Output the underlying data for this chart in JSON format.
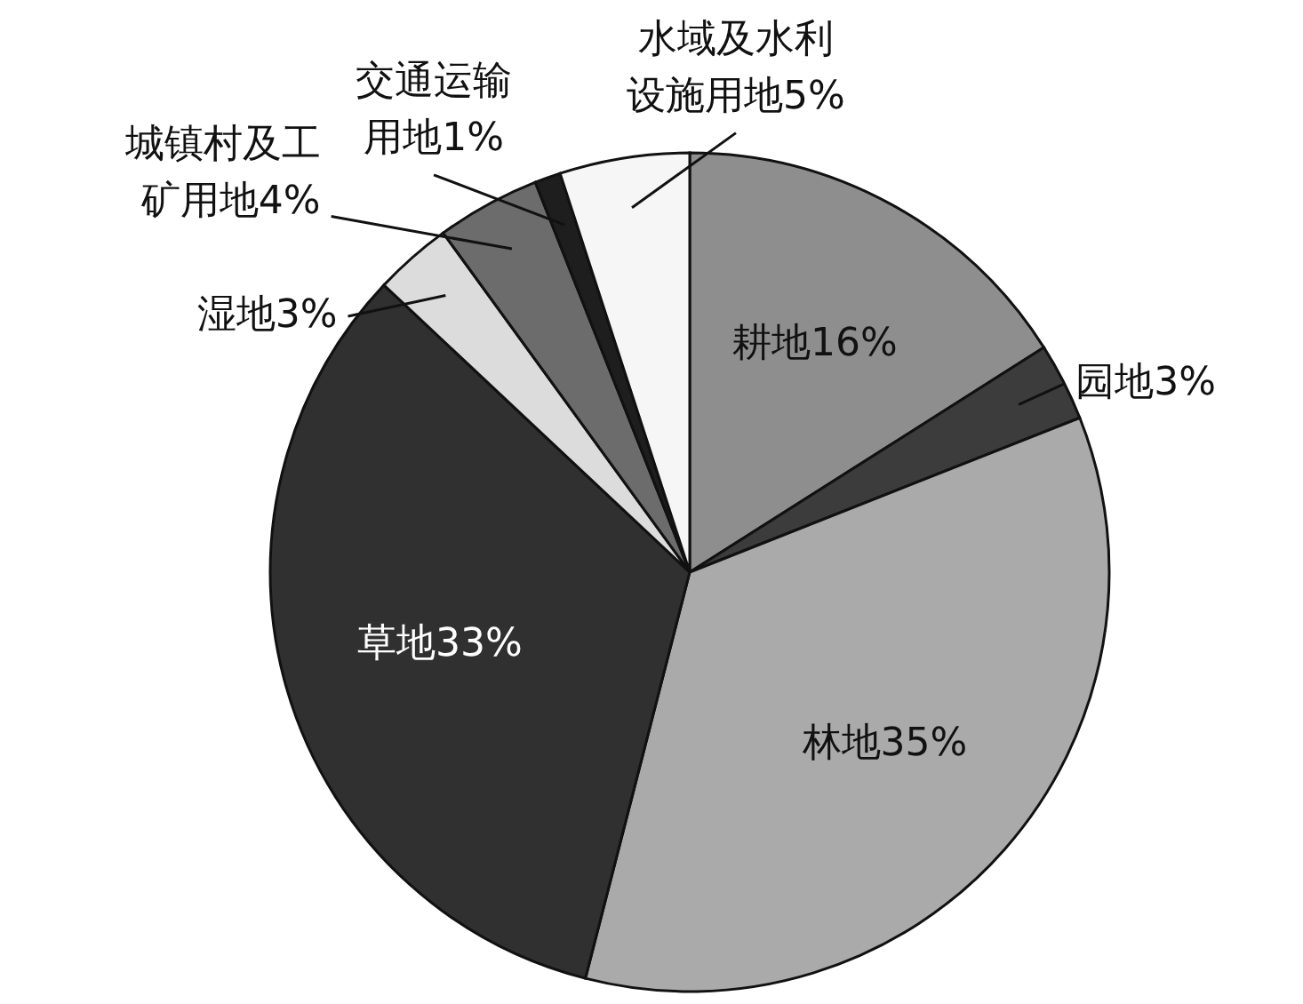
{
  "chart_data": {
    "type": "pie",
    "categories": [
      "耕地",
      "园地",
      "林地",
      "草地",
      "湿地",
      "城镇村及工矿用地",
      "交通运输用地",
      "水域及水利设施用地"
    ],
    "values": [
      16,
      3,
      35,
      33,
      3,
      4,
      1,
      5
    ],
    "value_labels": [
      "16%",
      "3%",
      "35%",
      "33%",
      "3%",
      "4%",
      "1%",
      "5%"
    ],
    "colors": [
      "#8e8e8e",
      "#3c3c3c",
      "#aaaaaa",
      "#303030",
      "#dcdcdc",
      "#6c6c6c",
      "#1e1e1e",
      "#f6f6f6"
    ]
  }
}
